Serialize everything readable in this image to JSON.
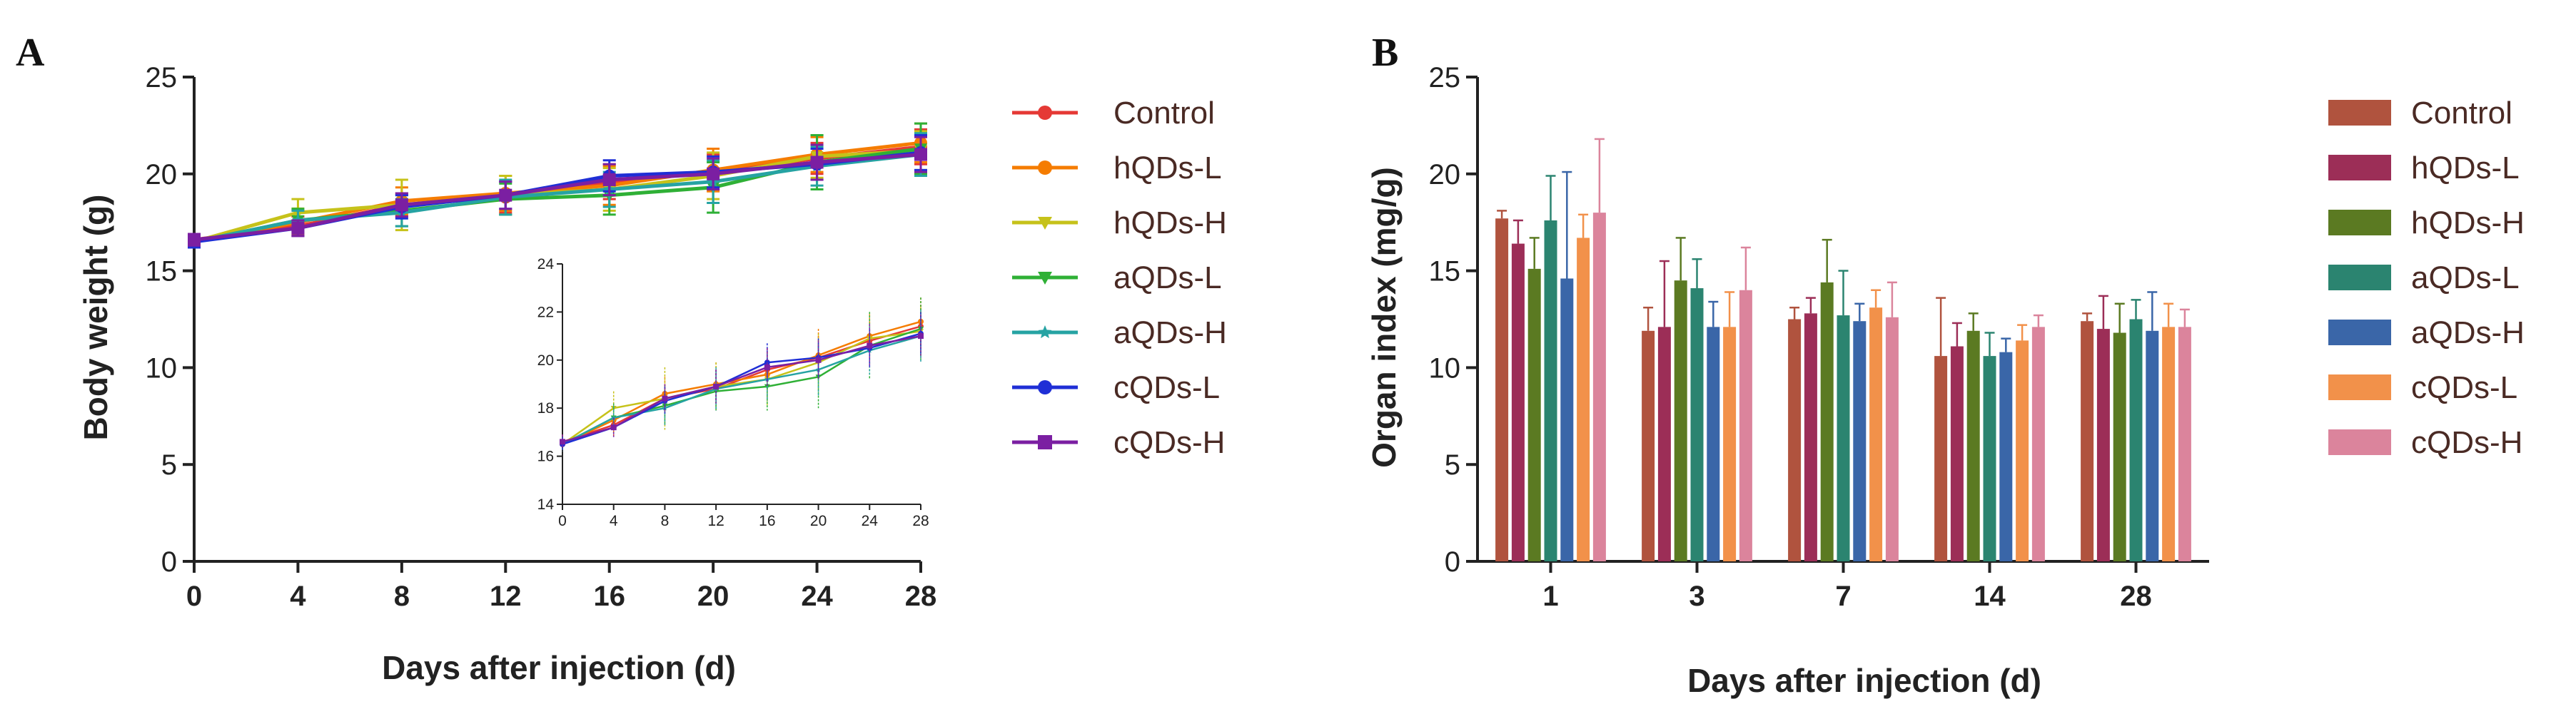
{
  "chart_data": [
    {
      "panel": "A",
      "type": "line",
      "xlabel": "Days after injection (d)",
      "ylabel": "Body weight (g)",
      "xlim": [
        0,
        28
      ],
      "ylim": [
        0,
        25
      ],
      "xticks": [
        "0",
        "4",
        "8",
        "12",
        "16",
        "20",
        "24",
        "28"
      ],
      "yticks": [
        "0",
        "5",
        "10",
        "15",
        "20",
        "25"
      ],
      "x": [
        0,
        4,
        8,
        12,
        16,
        20,
        24,
        28
      ],
      "series": [
        {
          "name": "Control",
          "color": "#e53935",
          "marker": "circle",
          "values": [
            16.6,
            17.3,
            18.4,
            18.8,
            19.6,
            20.1,
            20.8,
            21.4
          ],
          "errors": [
            0.3,
            0.5,
            0.6,
            0.8,
            0.9,
            0.9,
            0.8,
            0.9
          ]
        },
        {
          "name": "hQDs-L",
          "color": "#f57c00",
          "marker": "circle",
          "values": [
            16.5,
            17.5,
            18.6,
            19.0,
            19.4,
            20.2,
            21.0,
            21.6
          ],
          "errors": [
            0.3,
            0.6,
            0.7,
            0.9,
            1.0,
            1.1,
            0.9,
            1.0
          ]
        },
        {
          "name": "hQDs-H",
          "color": "#c6c21a",
          "marker": "triangle",
          "values": [
            16.5,
            18.0,
            18.4,
            18.9,
            19.2,
            19.9,
            20.9,
            21.2
          ],
          "errors": [
            0.3,
            0.7,
            1.3,
            1.0,
            1.1,
            1.2,
            1.1,
            1.0
          ]
        },
        {
          "name": "aQDs-L",
          "color": "#2fb036",
          "marker": "triangle",
          "values": [
            16.5,
            17.6,
            18.1,
            18.7,
            18.9,
            19.3,
            20.6,
            21.3
          ],
          "errors": [
            0.3,
            0.6,
            0.8,
            0.8,
            1.0,
            1.3,
            1.4,
            1.3
          ]
        },
        {
          "name": "aQDs-H",
          "color": "#26a3a3",
          "marker": "star",
          "values": [
            16.5,
            17.6,
            18.0,
            18.8,
            19.2,
            19.6,
            20.4,
            21.0
          ],
          "errors": [
            0.3,
            0.5,
            0.7,
            0.9,
            0.9,
            1.1,
            1.0,
            1.1
          ]
        },
        {
          "name": "cQDs-L",
          "color": "#1f2fd6",
          "marker": "circle",
          "values": [
            16.5,
            17.2,
            18.3,
            18.9,
            19.9,
            20.1,
            20.5,
            21.1
          ],
          "errors": [
            0.3,
            0.4,
            0.6,
            0.7,
            0.8,
            0.8,
            0.8,
            0.9
          ]
        },
        {
          "name": "cQDs-H",
          "color": "#7b1fa2",
          "marker": "square",
          "values": [
            16.6,
            17.2,
            18.4,
            18.9,
            19.7,
            20.0,
            20.6,
            21.0
          ],
          "errors": [
            0.3,
            0.4,
            0.6,
            0.7,
            0.8,
            0.8,
            0.9,
            0.9
          ]
        }
      ],
      "inset": {
        "xlim": [
          0,
          28
        ],
        "ylim": [
          14,
          24
        ],
        "xticks": [
          "0",
          "4",
          "8",
          "12",
          "16",
          "20",
          "24",
          "28"
        ],
        "yticks": [
          "14",
          "16",
          "18",
          "20",
          "22",
          "24"
        ]
      },
      "legend_position": "right"
    },
    {
      "panel": "B",
      "type": "bar",
      "xlabel": "Days after injection (d)",
      "ylabel": "Organ index (mg/g)",
      "ylim": [
        0,
        25
      ],
      "yticks": [
        "0",
        "5",
        "10",
        "15",
        "20",
        "25"
      ],
      "categories": [
        "1",
        "3",
        "7",
        "14",
        "28"
      ],
      "series": [
        {
          "name": "Control",
          "color": "#b0533e",
          "values": [
            17.7,
            11.9,
            12.5,
            10.6,
            12.4
          ],
          "errors": [
            0.4,
            1.2,
            0.6,
            3.0,
            0.4
          ]
        },
        {
          "name": "hQDs-L",
          "color": "#9c2e57",
          "values": [
            16.4,
            12.1,
            12.8,
            11.1,
            12.0
          ],
          "errors": [
            1.2,
            3.4,
            0.8,
            1.2,
            1.7
          ]
        },
        {
          "name": "hQDs-H",
          "color": "#5b7a22",
          "values": [
            15.1,
            14.5,
            14.4,
            11.9,
            11.8
          ],
          "errors": [
            1.6,
            2.2,
            2.2,
            0.9,
            1.5
          ]
        },
        {
          "name": "aQDs-L",
          "color": "#2b8470",
          "values": [
            17.6,
            14.1,
            12.7,
            10.6,
            12.5
          ],
          "errors": [
            2.3,
            1.5,
            2.3,
            1.2,
            1.0
          ]
        },
        {
          "name": "aQDs-H",
          "color": "#3a66a8",
          "values": [
            14.6,
            12.1,
            12.4,
            10.8,
            11.9
          ],
          "errors": [
            5.5,
            1.3,
            0.9,
            0.7,
            2.0
          ]
        },
        {
          "name": "cQDs-L",
          "color": "#f2914a",
          "values": [
            16.7,
            12.1,
            13.1,
            11.4,
            12.1
          ],
          "errors": [
            1.2,
            1.8,
            0.9,
            0.8,
            1.2
          ]
        },
        {
          "name": "cQDs-H",
          "color": "#db849c",
          "values": [
            18.0,
            14.0,
            12.6,
            12.1,
            12.1
          ],
          "errors": [
            3.8,
            2.2,
            1.8,
            0.6,
            0.9
          ]
        }
      ],
      "legend_position": "right"
    }
  ]
}
